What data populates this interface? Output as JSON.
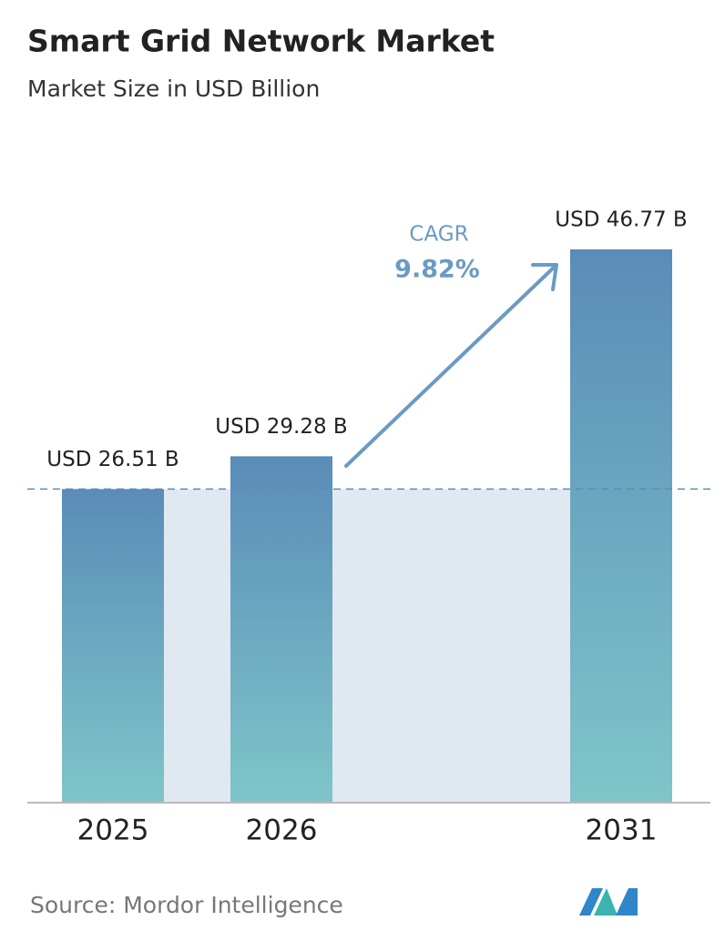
{
  "chart_data": {
    "type": "bar",
    "title": "Smart Grid Network Market",
    "subtitle": "Market Size in USD Billion",
    "categories": [
      "2025",
      "2026",
      "2031"
    ],
    "values": [
      26.51,
      29.28,
      46.77
    ],
    "value_labels": [
      "USD 26.51 B",
      "USD 29.28 B",
      "USD 46.77 B"
    ],
    "color_top": "#5a8cb8",
    "color_bottom": "#7fc5c9",
    "cagr_label": "CAGR",
    "cagr_value_label": "9.82%",
    "source": "Source: Mordor Intelligence"
  }
}
